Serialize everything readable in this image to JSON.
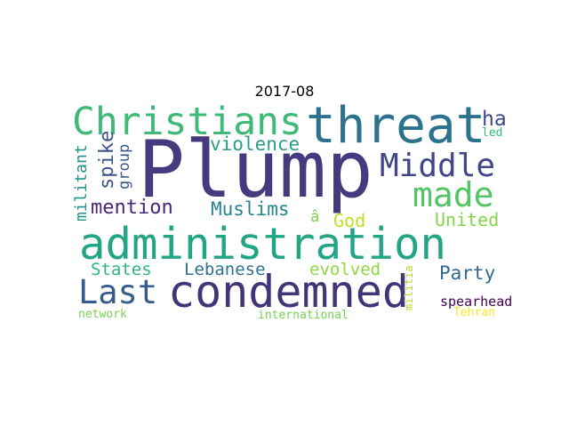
{
  "title": "2017-08",
  "words": [
    {
      "text": "Plump",
      "color": "#463a7e"
    },
    {
      "text": "administration",
      "color": "#22a585"
    },
    {
      "text": "threat",
      "color": "#2c728e"
    },
    {
      "text": "condemned",
      "color": "#433477"
    },
    {
      "text": "Christians",
      "color": "#3fb978"
    },
    {
      "text": "Middle",
      "color": "#404688"
    },
    {
      "text": "made",
      "color": "#54c567"
    },
    {
      "text": "Last",
      "color": "#365c8d"
    },
    {
      "text": "mention",
      "color": "#482576"
    },
    {
      "text": "Muslims",
      "color": "#25828e"
    },
    {
      "text": "violence",
      "color": "#2aa083"
    },
    {
      "text": "spike",
      "color": "#3b528b"
    },
    {
      "text": "group",
      "color": "#39568c"
    },
    {
      "text": "militant",
      "color": "#20938c"
    },
    {
      "text": "ha",
      "color": "#3e4989"
    },
    {
      "text": "led",
      "color": "#35b779"
    },
    {
      "text": "â",
      "color": "#7ad151"
    },
    {
      "text": "God",
      "color": "#c2df23"
    },
    {
      "text": "United",
      "color": "#86d549"
    },
    {
      "text": "States",
      "color": "#2fb47c"
    },
    {
      "text": "Lebanese",
      "color": "#2d718e"
    },
    {
      "text": "evolved",
      "color": "#90d743"
    },
    {
      "text": "Party",
      "color": "#31688e"
    },
    {
      "text": "militia",
      "color": "#b5de2b"
    },
    {
      "text": "spearhead",
      "color": "#440154"
    },
    {
      "text": "network",
      "color": "#7ad151"
    },
    {
      "text": "international",
      "color": "#75d054"
    },
    {
      "text": "Tehran",
      "color": "#fde725"
    }
  ]
}
